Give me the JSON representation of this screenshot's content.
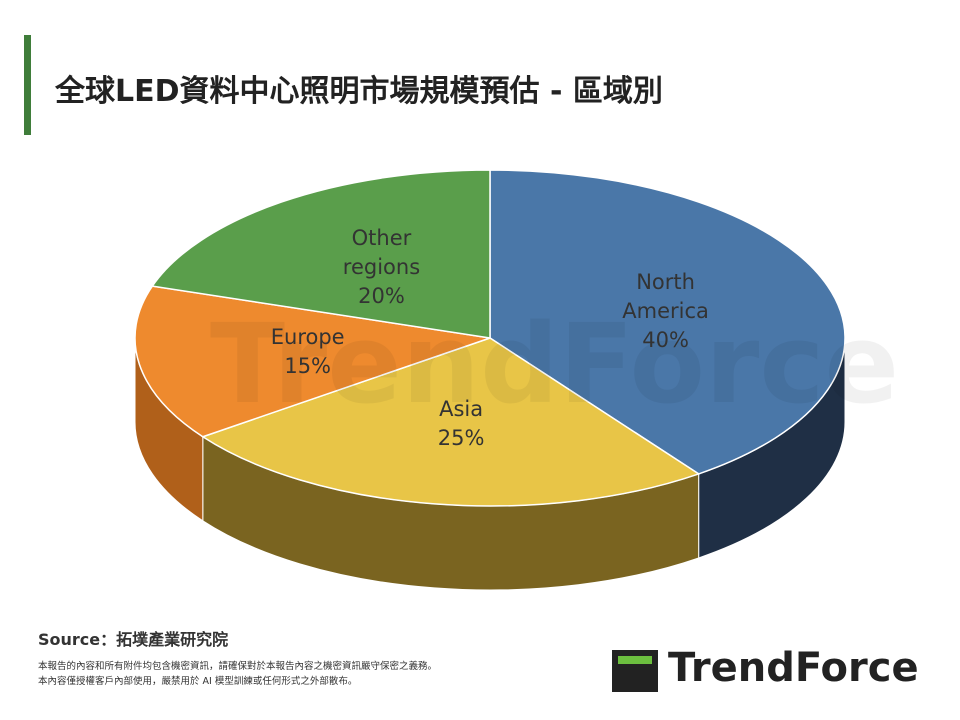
{
  "chart_data": {
    "type": "pie",
    "title": "全球LED資料中心照明市場規模預估 - 區域別",
    "categories": [
      "North America",
      "Asia",
      "Europe",
      "Other regions"
    ],
    "values": [
      40,
      25,
      15,
      20
    ],
    "value_labels": [
      "40%",
      "25%",
      "15%",
      "20%"
    ],
    "colors": [
      "#4a77a8",
      "#e8c547",
      "#ee8a2e",
      "#5a9e4b"
    ],
    "side_colors": [
      "#1f2f45",
      "#7a6420",
      "#b0601a",
      "#3a6a30"
    ]
  },
  "footer": {
    "source": "Source：拓墣產業研究院",
    "disclaimer": [
      "本報告的內容和所有附件均包含機密資訊，請確保對於本報告內容之機密資訊嚴守保密之義務。",
      "本內容僅授權客戶內部使用，嚴禁用於 AI 模型訓練或任何形式之外部散布。"
    ],
    "logo": "TrendForce"
  }
}
